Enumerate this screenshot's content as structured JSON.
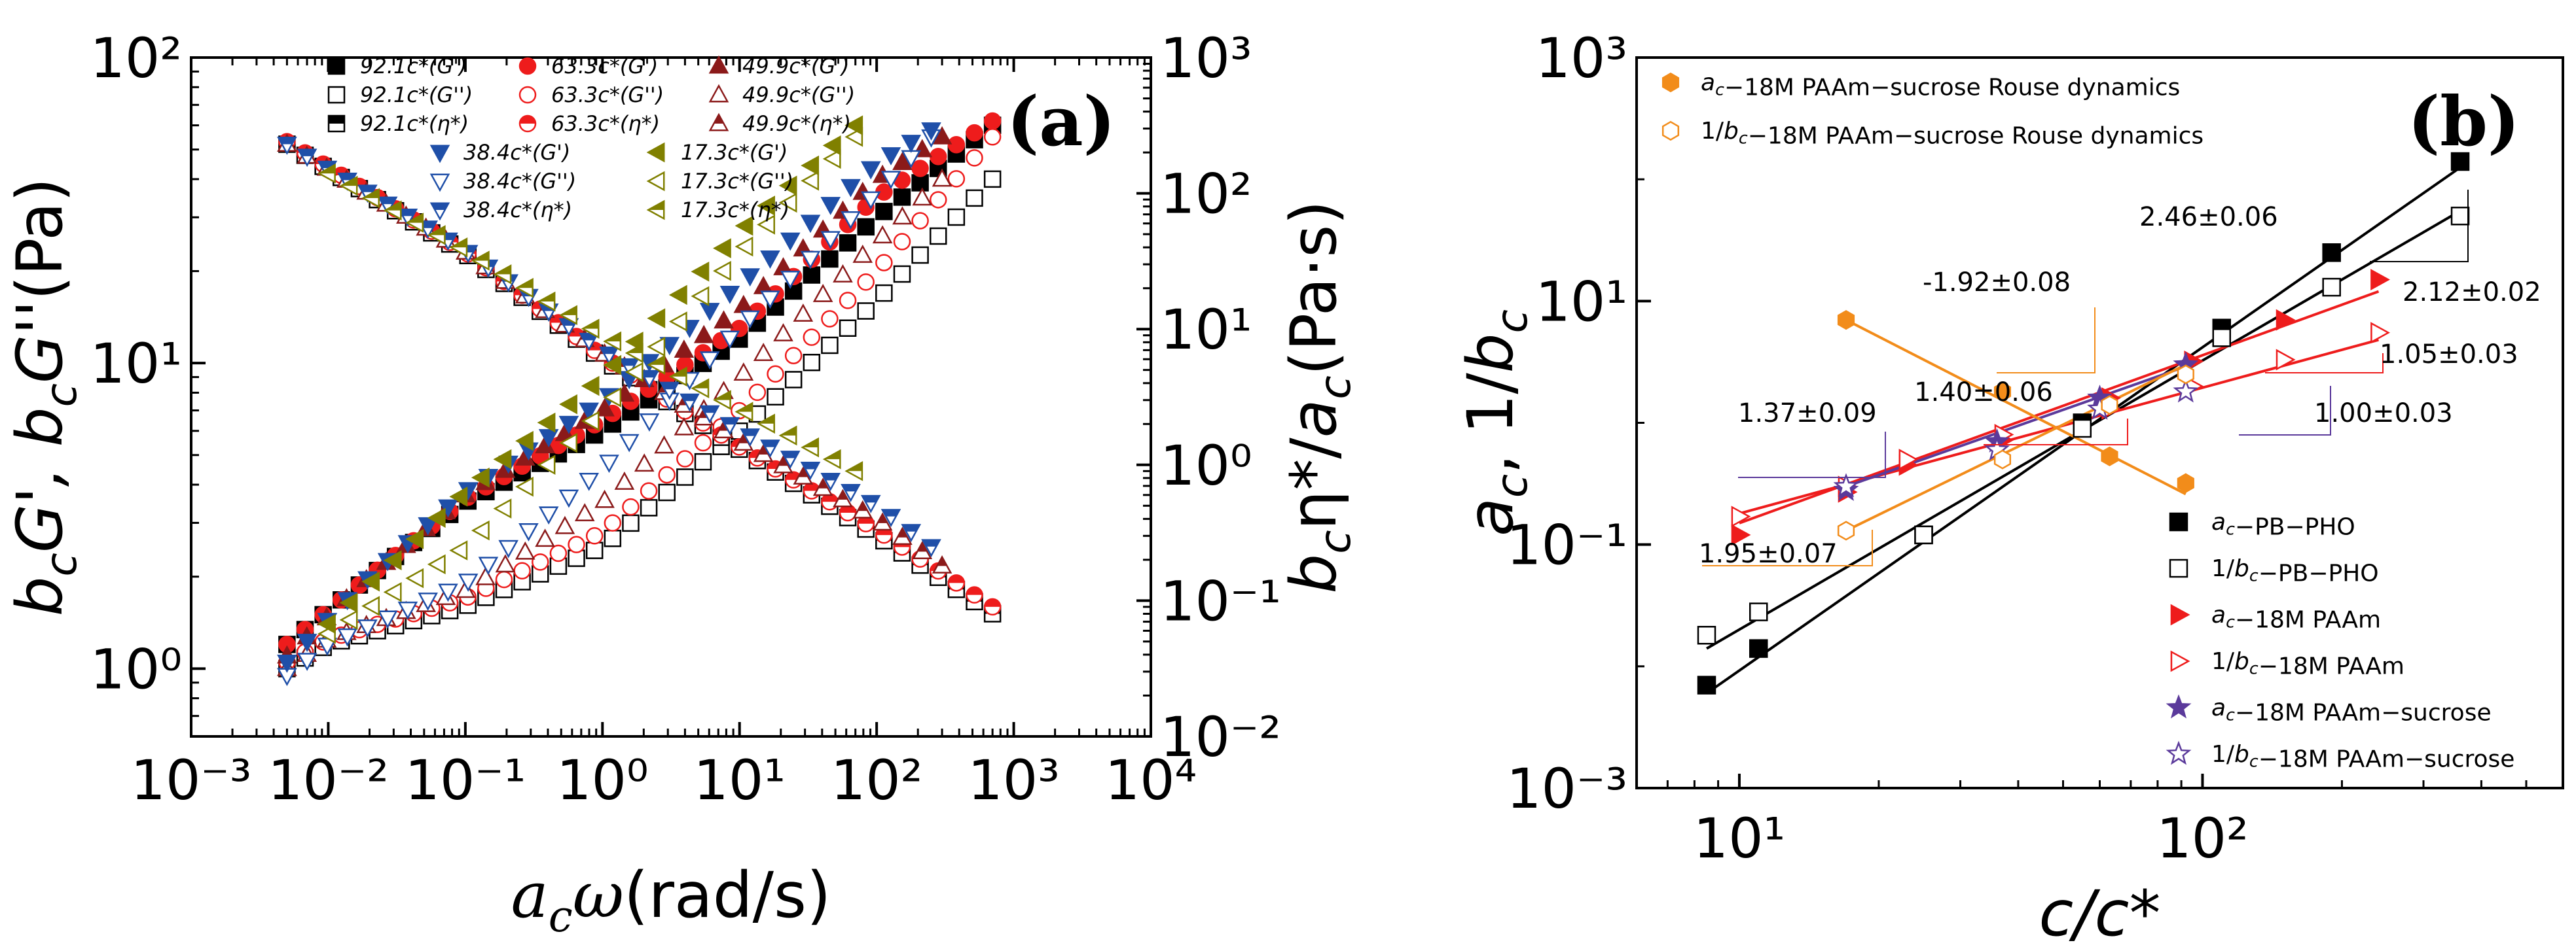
{
  "panels": [
    {
      "id": "a",
      "label": "(a)",
      "xaxis": {
        "title": "a_cω(rad/s)",
        "scale": "log",
        "lim": [
          0.001,
          10000
        ],
        "ticks": [
          0.001,
          0.01,
          0.1,
          1,
          10,
          100,
          1000,
          10000
        ],
        "tick_labels": [
          "10⁻³",
          "10⁻²",
          "10⁻¹",
          "10⁰",
          "10¹",
          "10²",
          "10³",
          "10⁴"
        ]
      },
      "yaxis_left": {
        "title": "b_cG', b_cG''(Pa)",
        "scale": "log",
        "lim": [
          0.6,
          100
        ],
        "ticks": [
          1,
          10,
          100
        ],
        "tick_labels": [
          "10⁰",
          "10¹",
          "10²"
        ]
      },
      "yaxis_right": {
        "title": "b_cη*/a_c(Pa·s)",
        "scale": "log",
        "lim": [
          0.01,
          1000
        ],
        "ticks": [
          0.01,
          0.1,
          1,
          10,
          100,
          1000
        ],
        "tick_labels": [
          "10⁻²",
          "10⁻¹",
          "10⁰",
          "10¹",
          "10²",
          "10³"
        ]
      },
      "legend": [
        {
          "label": "92.1c*(G')",
          "color": "#000000",
          "marker": "square",
          "fill": "full"
        },
        {
          "label": "63.3c*(G')",
          "color": "#ee1c1c",
          "marker": "circle",
          "fill": "full"
        },
        {
          "label": "49.9c*(G')",
          "color": "#8b1a1a",
          "marker": "triangle-up",
          "fill": "full"
        },
        {
          "label": "92.1c*(G'')",
          "color": "#000000",
          "marker": "square",
          "fill": "none"
        },
        {
          "label": "63.3c*(G'')",
          "color": "#ee1c1c",
          "marker": "circle",
          "fill": "none"
        },
        {
          "label": "49.9c*(G'')",
          "color": "#8b1a1a",
          "marker": "triangle-up",
          "fill": "none"
        },
        {
          "label": "92.1c*(η*)",
          "color": "#000000",
          "marker": "square",
          "fill": "half"
        },
        {
          "label": "63.3c*(η*)",
          "color": "#ee1c1c",
          "marker": "circle",
          "fill": "half"
        },
        {
          "label": "49.9c*(η*)",
          "color": "#8b1a1a",
          "marker": "triangle-up",
          "fill": "half"
        },
        {
          "label": "38.4c*(G')",
          "color": "#1f4fa8",
          "marker": "triangle-down",
          "fill": "full"
        },
        {
          "label": "17.3c*(G')",
          "color": "#808000",
          "marker": "triangle-left",
          "fill": "full"
        },
        {
          "label": "38.4c*(G'')",
          "color": "#1f4fa8",
          "marker": "triangle-down",
          "fill": "none"
        },
        {
          "label": "17.3c*(G'')",
          "color": "#808000",
          "marker": "triangle-left",
          "fill": "none"
        },
        {
          "label": "38.4c*(η*)",
          "color": "#1f4fa8",
          "marker": "triangle-down",
          "fill": "half"
        },
        {
          "label": "17.3c*(η*)",
          "color": "#808000",
          "marker": "triangle-left",
          "fill": "half"
        }
      ],
      "series": [
        {
          "name": "92.1c*",
          "color": "#000000",
          "marker": "square",
          "x_range": [
            0.005,
            700
          ],
          "n": 40,
          "Gp": [
            [
              0.005,
              1.2
            ],
            [
              0.02,
              2.0
            ],
            [
              0.1,
              3.5
            ],
            [
              1,
              6
            ],
            [
              10,
              12
            ],
            [
              100,
              30
            ],
            [
              700,
              60
            ]
          ],
          "Gpp": [
            [
              0.005,
              1.0
            ],
            [
              0.01,
              1.2
            ],
            [
              0.1,
              1.6
            ],
            [
              1,
              2.5
            ],
            [
              10,
              6
            ],
            [
              100,
              16
            ],
            [
              700,
              40
            ]
          ],
          "eta": [
            [
              0.005,
              230
            ],
            [
              0.1,
              36
            ],
            [
              1,
              6
            ],
            [
              10,
              1.3
            ],
            [
              100,
              0.3
            ],
            [
              700,
              0.08
            ]
          ]
        },
        {
          "name": "63.3c*",
          "color": "#ee1c1c",
          "marker": "circle",
          "x_range": [
            0.005,
            700
          ],
          "n": 40,
          "Gp": [
            [
              0.005,
              1.2
            ],
            [
              0.02,
              2.0
            ],
            [
              0.1,
              3.6
            ],
            [
              1,
              6.5
            ],
            [
              10,
              13
            ],
            [
              100,
              35
            ],
            [
              700,
              62
            ]
          ],
          "Gpp": [
            [
              0.005,
              1.05
            ],
            [
              0.01,
              1.25
            ],
            [
              0.1,
              1.7
            ],
            [
              1,
              2.8
            ],
            [
              10,
              7
            ],
            [
              100,
              20
            ],
            [
              700,
              55
            ]
          ],
          "eta": [
            [
              0.005,
              240
            ],
            [
              0.1,
              37
            ],
            [
              1,
              6.3
            ],
            [
              10,
              1.35
            ],
            [
              100,
              0.33
            ],
            [
              700,
              0.09
            ]
          ]
        },
        {
          "name": "49.9c*",
          "color": "#8b1a1a",
          "marker": "triangle-up",
          "x_range": [
            0.005,
            300
          ],
          "n": 34,
          "Gp": [
            [
              0.005,
              1.1
            ],
            [
              0.02,
              2.0
            ],
            [
              0.1,
              3.7
            ],
            [
              1,
              7
            ],
            [
              10,
              15
            ],
            [
              100,
              40
            ],
            [
              300,
              55
            ]
          ],
          "Gpp": [
            [
              0.005,
              1.0
            ],
            [
              0.01,
              1.25
            ],
            [
              0.1,
              1.8
            ],
            [
              1,
              3.5
            ],
            [
              10,
              9
            ],
            [
              100,
              25
            ],
            [
              300,
              40
            ]
          ],
          "eta": [
            [
              0.005,
              230
            ],
            [
              0.1,
              37
            ],
            [
              1,
              6.7
            ],
            [
              10,
              1.5
            ],
            [
              100,
              0.4
            ],
            [
              300,
              0.18
            ]
          ]
        },
        {
          "name": "38.4c*",
          "color": "#1f4fa8",
          "marker": "triangle-down",
          "x_range": [
            0.005,
            250
          ],
          "n": 33,
          "Gp": [
            [
              0.005,
              1.05
            ],
            [
              0.02,
              2.0
            ],
            [
              0.1,
              3.8
            ],
            [
              1,
              7.5
            ],
            [
              10,
              18
            ],
            [
              100,
              45
            ],
            [
              250,
              58
            ]
          ],
          "Gpp": [
            [
              0.005,
              0.95
            ],
            [
              0.01,
              1.2
            ],
            [
              0.1,
              1.9
            ],
            [
              1,
              4.5
            ],
            [
              10,
              13
            ],
            [
              100,
              36
            ],
            [
              250,
              55
            ]
          ],
          "eta": [
            [
              0.005,
              230
            ],
            [
              0.1,
              38
            ],
            [
              1,
              7
            ],
            [
              10,
              1.8
            ],
            [
              100,
              0.5
            ],
            [
              250,
              0.25
            ]
          ]
        },
        {
          "name": "17.3c*",
          "color": "#808000",
          "marker": "triangle-left",
          "x_range": [
            0.01,
            70
          ],
          "n": 25,
          "Gp": [
            [
              0.01,
              1.4
            ],
            [
              0.1,
              3.8
            ],
            [
              1,
              9
            ],
            [
              10,
              27
            ],
            [
              70,
              60
            ]
          ],
          "Gpp": [
            [
              0.01,
              1.3
            ],
            [
              0.1,
              2.5
            ],
            [
              1,
              7
            ],
            [
              10,
              23
            ],
            [
              70,
              55
            ]
          ],
          "eta": [
            [
              0.01,
              140
            ],
            [
              0.1,
              38
            ],
            [
              1,
              9
            ],
            [
              10,
              2.6
            ],
            [
              70,
              0.9
            ]
          ]
        }
      ]
    },
    {
      "id": "b",
      "label": "(b)",
      "xaxis": {
        "title": "c/c*",
        "scale": "log",
        "lim": [
          6,
          600
        ],
        "ticks": [
          10,
          100
        ],
        "tick_labels": [
          "10¹",
          "10²"
        ]
      },
      "yaxis": {
        "title": "a_c, 1/b_c",
        "scale": "log",
        "lim": [
          0.001,
          1000
        ],
        "ticks": [
          0.001,
          0.1,
          10,
          1000
        ],
        "tick_labels": [
          "10⁻³",
          "10⁻¹",
          "10¹",
          "10³"
        ]
      },
      "legend_top": [
        {
          "label": "a_c−18M PAAm−sucrose Rouse dynamics",
          "color": "#f28c1a",
          "marker": "hexagon",
          "fill": "full"
        },
        {
          "label": "1/b_c−18M PAAm−sucrose Rouse dynamics",
          "color": "#f28c1a",
          "marker": "hexagon",
          "fill": "none"
        }
      ],
      "legend_bottom": [
        {
          "label": "a_c−PB−PHO",
          "color": "#000000",
          "marker": "square",
          "fill": "full"
        },
        {
          "label": "1/b_c−PB−PHO",
          "color": "#000000",
          "marker": "square",
          "fill": "none"
        },
        {
          "label": "a_c−18M PAAm",
          "color": "#ee1c1c",
          "marker": "triangle-right",
          "fill": "full"
        },
        {
          "label": "1/b_c−18M PAAm",
          "color": "#ee1c1c",
          "marker": "triangle-right",
          "fill": "none"
        },
        {
          "label": "a_c−18M PAAm−sucrose",
          "color": "#5b3a9b",
          "marker": "star",
          "fill": "full"
        },
        {
          "label": "1/b_c−18M PAAm−sucrose",
          "color": "#5b3a9b",
          "marker": "star",
          "fill": "none"
        }
      ],
      "series": [
        {
          "name": "a_c−PB−PHO",
          "color": "#000000",
          "marker": "square",
          "fill": "full",
          "x": [
            8.5,
            11,
            25,
            55,
            110,
            190,
            360
          ],
          "y": [
            0.007,
            0.014,
            0.12,
            1.0,
            6.0,
            25,
            140
          ]
        },
        {
          "name": "1/b_c−PB−PHO",
          "color": "#000000",
          "marker": "square",
          "fill": "none",
          "x": [
            8.5,
            11,
            25,
            55,
            110,
            190,
            360
          ],
          "y": [
            0.018,
            0.028,
            0.12,
            0.9,
            5.0,
            13,
            50
          ]
        },
        {
          "name": "a_c−18M PAAm",
          "color": "#ee1c1c",
          "marker": "triangle-right",
          "fill": "full",
          "x": [
            10,
            17,
            23,
            37,
            63,
            95,
            150,
            240
          ],
          "y": [
            0.12,
            0.27,
            0.45,
            0.72,
            1.6,
            3.2,
            7,
            15
          ]
        },
        {
          "name": "1/b_c−18M PAAm",
          "color": "#ee1c1c",
          "marker": "triangle-right",
          "fill": "none",
          "x": [
            10,
            17,
            23,
            37,
            63,
            95,
            150,
            240
          ],
          "y": [
            0.17,
            0.3,
            0.5,
            0.8,
            1.3,
            2.0,
            3.3,
            5.5
          ]
        },
        {
          "name": "a_c−18M PAAm−sucrose",
          "color": "#5b3a9b",
          "marker": "star",
          "fill": "full",
          "x": [
            17,
            36,
            60,
            92
          ],
          "y": [
            0.28,
            0.7,
            1.6,
            3.0
          ]
        },
        {
          "name": "1/b_c−18M PAAm−sucrose",
          "color": "#5b3a9b",
          "marker": "star",
          "fill": "none",
          "x": [
            17,
            36,
            60,
            92
          ],
          "y": [
            0.3,
            0.6,
            1.3,
            1.8
          ]
        },
        {
          "name": "a_c−18M PAAm−sucrose Rouse dynamics",
          "color": "#f28c1a",
          "marker": "hexagon",
          "fill": "full",
          "x": [
            17,
            37,
            63,
            92
          ],
          "y": [
            7,
            1.8,
            0.53,
            0.32
          ]
        },
        {
          "name": "1/b_c−18M PAAm−sucrose Rouse dynamics",
          "color": "#f28c1a",
          "marker": "hexagon",
          "fill": "none",
          "x": [
            17,
            37,
            63,
            92
          ],
          "y": [
            0.13,
            0.5,
            1.4,
            2.5
          ]
        }
      ],
      "fits": [
        {
          "color": "#000000",
          "x": [
            8.5,
            360
          ],
          "y": [
            0.006,
            125
          ]
        },
        {
          "color": "#000000",
          "x": [
            8.5,
            360
          ],
          "y": [
            0.014,
            55
          ]
        },
        {
          "color": "#ee1c1c",
          "x": [
            10,
            240
          ],
          "y": [
            0.15,
            12
          ]
        },
        {
          "color": "#ee1c1c",
          "x": [
            10,
            240
          ],
          "y": [
            0.18,
            4.8
          ]
        },
        {
          "color": "#5b3a9b",
          "x": [
            17,
            92
          ],
          "y": [
            0.3,
            2.9
          ]
        },
        {
          "color": "#f28c1a",
          "x": [
            17,
            92
          ],
          "y": [
            7,
            0.26
          ]
        },
        {
          "color": "#f28c1a",
          "x": [
            17,
            92
          ],
          "y": [
            0.13,
            3.0
          ]
        }
      ],
      "annotations": [
        {
          "text": "2.46±0.06",
          "color": "#000000"
        },
        {
          "text": "2.12±0.02",
          "color": "#000000"
        },
        {
          "text": "-1.92±0.08",
          "color": "#f28c1a"
        },
        {
          "text": "1.40±0.06",
          "color": "#ee1c1c"
        },
        {
          "text": "1.05±0.03",
          "color": "#ee1c1c"
        },
        {
          "text": "1.37±0.09",
          "color": "#5b3a9b"
        },
        {
          "text": "1.00±0.03",
          "color": "#5b3a9b"
        },
        {
          "text": "1.95±0.07",
          "color": "#f28c1a"
        }
      ]
    }
  ]
}
